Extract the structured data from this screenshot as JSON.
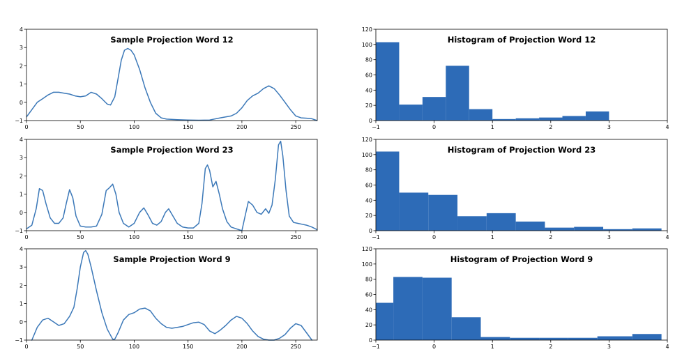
{
  "chart_data": [
    {
      "id": "line12",
      "type": "line",
      "title": "Sample Projection Word 12",
      "xlim": [
        0,
        270
      ],
      "ylim": [
        -1,
        4
      ],
      "xticks": [
        0,
        50,
        100,
        150,
        200,
        250
      ],
      "yticks": [
        -1,
        0,
        1,
        2,
        3,
        4
      ],
      "color": "#3b78b8",
      "points": [
        [
          0,
          -0.8
        ],
        [
          5,
          -0.4
        ],
        [
          10,
          0.0
        ],
        [
          15,
          0.2
        ],
        [
          20,
          0.4
        ],
        [
          25,
          0.55
        ],
        [
          30,
          0.55
        ],
        [
          35,
          0.5
        ],
        [
          40,
          0.45
        ],
        [
          45,
          0.35
        ],
        [
          50,
          0.3
        ],
        [
          55,
          0.35
        ],
        [
          60,
          0.55
        ],
        [
          65,
          0.45
        ],
        [
          70,
          0.2
        ],
        [
          75,
          -0.1
        ],
        [
          78,
          -0.15
        ],
        [
          82,
          0.3
        ],
        [
          85,
          1.3
        ],
        [
          88,
          2.3
        ],
        [
          91,
          2.85
        ],
        [
          94,
          2.95
        ],
        [
          97,
          2.85
        ],
        [
          100,
          2.6
        ],
        [
          105,
          1.8
        ],
        [
          110,
          0.8
        ],
        [
          115,
          0.0
        ],
        [
          120,
          -0.6
        ],
        [
          125,
          -0.85
        ],
        [
          130,
          -0.92
        ],
        [
          140,
          -0.95
        ],
        [
          150,
          -0.97
        ],
        [
          160,
          -0.98
        ],
        [
          170,
          -0.97
        ],
        [
          180,
          -0.85
        ],
        [
          190,
          -0.75
        ],
        [
          195,
          -0.6
        ],
        [
          200,
          -0.3
        ],
        [
          205,
          0.1
        ],
        [
          210,
          0.35
        ],
        [
          215,
          0.5
        ],
        [
          220,
          0.75
        ],
        [
          225,
          0.9
        ],
        [
          230,
          0.75
        ],
        [
          235,
          0.4
        ],
        [
          240,
          0.0
        ],
        [
          245,
          -0.4
        ],
        [
          250,
          -0.75
        ],
        [
          255,
          -0.85
        ],
        [
          260,
          -0.87
        ],
        [
          265,
          -0.9
        ],
        [
          270,
          -1.0
        ]
      ]
    },
    {
      "id": "line23",
      "type": "line",
      "title": "Sample Projection Word 23",
      "xlim": [
        0,
        270
      ],
      "ylim": [
        -1,
        4
      ],
      "xticks": [
        0,
        50,
        100,
        150,
        200,
        250
      ],
      "yticks": [
        -1,
        0,
        1,
        2,
        3,
        4
      ],
      "color": "#3b78b8",
      "points": [
        [
          0,
          -0.9
        ],
        [
          5,
          -0.7
        ],
        [
          9,
          0.2
        ],
        [
          12,
          1.3
        ],
        [
          15,
          1.2
        ],
        [
          18,
          0.5
        ],
        [
          22,
          -0.3
        ],
        [
          26,
          -0.6
        ],
        [
          30,
          -0.6
        ],
        [
          34,
          -0.3
        ],
        [
          37,
          0.5
        ],
        [
          40,
          1.25
        ],
        [
          43,
          0.8
        ],
        [
          46,
          -0.2
        ],
        [
          50,
          -0.75
        ],
        [
          55,
          -0.8
        ],
        [
          60,
          -0.8
        ],
        [
          65,
          -0.75
        ],
        [
          70,
          -0.1
        ],
        [
          74,
          1.2
        ],
        [
          77,
          1.35
        ],
        [
          80,
          1.55
        ],
        [
          83,
          1.0
        ],
        [
          86,
          0.0
        ],
        [
          90,
          -0.6
        ],
        [
          95,
          -0.8
        ],
        [
          100,
          -0.6
        ],
        [
          105,
          0.0
        ],
        [
          109,
          0.25
        ],
        [
          113,
          -0.15
        ],
        [
          117,
          -0.6
        ],
        [
          121,
          -0.7
        ],
        [
          125,
          -0.5
        ],
        [
          129,
          0.0
        ],
        [
          132,
          0.2
        ],
        [
          136,
          -0.2
        ],
        [
          140,
          -0.6
        ],
        [
          145,
          -0.8
        ],
        [
          150,
          -0.85
        ],
        [
          155,
          -0.85
        ],
        [
          160,
          -0.6
        ],
        [
          163,
          0.5
        ],
        [
          166,
          2.4
        ],
        [
          168,
          2.6
        ],
        [
          170,
          2.3
        ],
        [
          173,
          1.4
        ],
        [
          176,
          1.7
        ],
        [
          179,
          1.0
        ],
        [
          182,
          0.2
        ],
        [
          186,
          -0.5
        ],
        [
          190,
          -0.8
        ],
        [
          195,
          -0.9
        ],
        [
          200,
          -1.0
        ],
        [
          203,
          -0.2
        ],
        [
          206,
          0.6
        ],
        [
          210,
          0.4
        ],
        [
          214,
          0.0
        ],
        [
          218,
          -0.1
        ],
        [
          222,
          0.2
        ],
        [
          225,
          -0.05
        ],
        [
          228,
          0.4
        ],
        [
          231,
          1.8
        ],
        [
          234,
          3.7
        ],
        [
          236,
          3.9
        ],
        [
          238,
          3.1
        ],
        [
          241,
          1.2
        ],
        [
          244,
          -0.2
        ],
        [
          248,
          -0.55
        ],
        [
          252,
          -0.6
        ],
        [
          256,
          -0.65
        ],
        [
          260,
          -0.7
        ],
        [
          265,
          -0.8
        ],
        [
          270,
          -0.95
        ]
      ]
    },
    {
      "id": "line9",
      "type": "line",
      "title": "Sample Projection Word 9",
      "xlim": [
        0,
        270
      ],
      "ylim": [
        -1,
        4
      ],
      "xticks": [
        0,
        50,
        100,
        150,
        200,
        250
      ],
      "yticks": [
        -1,
        0,
        1,
        2,
        3,
        4
      ],
      "color": "#3b78b8",
      "points": [
        [
          5,
          -1.0
        ],
        [
          10,
          -0.3
        ],
        [
          15,
          0.1
        ],
        [
          20,
          0.2
        ],
        [
          25,
          0.0
        ],
        [
          30,
          -0.2
        ],
        [
          35,
          -0.1
        ],
        [
          40,
          0.3
        ],
        [
          44,
          0.8
        ],
        [
          47,
          1.8
        ],
        [
          50,
          3.0
        ],
        [
          53,
          3.8
        ],
        [
          55,
          3.9
        ],
        [
          57,
          3.7
        ],
        [
          60,
          3.0
        ],
        [
          65,
          1.7
        ],
        [
          70,
          0.5
        ],
        [
          75,
          -0.4
        ],
        [
          80,
          -0.95
        ],
        [
          82,
          -0.95
        ],
        [
          85,
          -0.6
        ],
        [
          90,
          0.1
        ],
        [
          95,
          0.4
        ],
        [
          100,
          0.5
        ],
        [
          105,
          0.7
        ],
        [
          110,
          0.75
        ],
        [
          115,
          0.6
        ],
        [
          120,
          0.2
        ],
        [
          125,
          -0.1
        ],
        [
          130,
          -0.3
        ],
        [
          135,
          -0.35
        ],
        [
          140,
          -0.3
        ],
        [
          145,
          -0.25
        ],
        [
          150,
          -0.15
        ],
        [
          155,
          -0.05
        ],
        [
          160,
          -0.02
        ],
        [
          165,
          -0.15
        ],
        [
          170,
          -0.5
        ],
        [
          175,
          -0.65
        ],
        [
          180,
          -0.45
        ],
        [
          185,
          -0.2
        ],
        [
          190,
          0.1
        ],
        [
          195,
          0.3
        ],
        [
          200,
          0.2
        ],
        [
          205,
          -0.1
        ],
        [
          210,
          -0.5
        ],
        [
          215,
          -0.8
        ],
        [
          220,
          -0.95
        ],
        [
          225,
          -1.0
        ],
        [
          230,
          -1.0
        ],
        [
          235,
          -0.9
        ],
        [
          240,
          -0.7
        ],
        [
          245,
          -0.35
        ],
        [
          250,
          -0.1
        ],
        [
          255,
          -0.2
        ],
        [
          260,
          -0.6
        ],
        [
          265,
          -1.0
        ]
      ]
    },
    {
      "id": "hist12",
      "type": "bar",
      "title": "Histogram of Projection Word 12",
      "xlim": [
        -1,
        4
      ],
      "ylim": [
        0,
        120
      ],
      "xticks": [
        -1,
        0,
        1,
        2,
        3,
        4
      ],
      "yticks": [
        0,
        20,
        40,
        60,
        80,
        100,
        120
      ],
      "color": "#2d6bb7",
      "bin_edges": [
        -1.0,
        -0.6,
        -0.2,
        0.2,
        0.6,
        1.0,
        1.4,
        1.8,
        2.2,
        2.6,
        3.0
      ],
      "counts": [
        103,
        21,
        31,
        72,
        15,
        2,
        3,
        4,
        6,
        12
      ]
    },
    {
      "id": "hist23",
      "type": "bar",
      "title": "Histogram of Projection Word 23",
      "xlim": [
        -1,
        4
      ],
      "ylim": [
        0,
        120
      ],
      "xticks": [
        -1,
        0,
        1,
        2,
        3,
        4
      ],
      "yticks": [
        0,
        20,
        40,
        60,
        80,
        100,
        120
      ],
      "color": "#2d6bb7",
      "bin_edges": [
        -1.0,
        -0.6,
        -0.1,
        0.4,
        0.9,
        1.4,
        1.9,
        2.4,
        2.9,
        3.4,
        3.9
      ],
      "counts": [
        104,
        50,
        47,
        19,
        23,
        12,
        4,
        5,
        2,
        3
      ]
    },
    {
      "id": "hist9",
      "type": "bar",
      "title": "Histogram of Projection Word 9",
      "xlim": [
        -1,
        4
      ],
      "ylim": [
        0,
        120
      ],
      "xticks": [
        -1,
        0,
        1,
        2,
        3,
        4
      ],
      "yticks": [
        0,
        20,
        40,
        60,
        80,
        100,
        120
      ],
      "color": "#2d6bb7",
      "bin_edges": [
        -1.0,
        -0.7,
        -0.2,
        0.3,
        0.8,
        1.3,
        1.8,
        2.3,
        2.8,
        3.4,
        3.9
      ],
      "counts": [
        49,
        83,
        82,
        30,
        4,
        3,
        3,
        3,
        5,
        8
      ]
    }
  ]
}
